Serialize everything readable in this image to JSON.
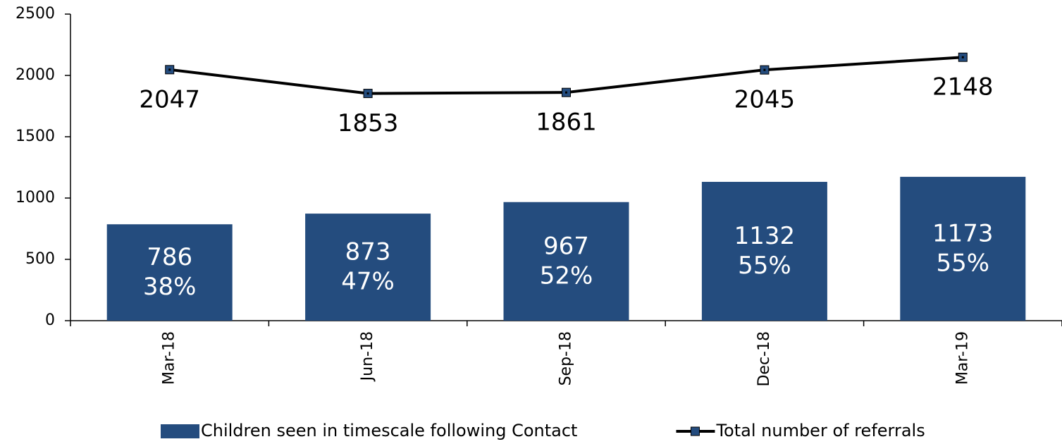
{
  "chart_data": {
    "type": "bar",
    "categories": [
      "Mar-18",
      "Jun-18",
      "Sep-18",
      "Dec-18",
      "Mar-19"
    ],
    "series": [
      {
        "name": "Children seen in timescale following Contact",
        "type": "bar",
        "color": "#244c7e",
        "values": [
          786,
          873,
          967,
          1132,
          1173
        ],
        "percent_labels": [
          "38%",
          "47%",
          "52%",
          "55%",
          "55%"
        ]
      },
      {
        "name": "Total number of referrals",
        "type": "line",
        "color": "#000000",
        "marker_color": "#244c7e",
        "values": [
          2047,
          1853,
          1861,
          2045,
          2148
        ]
      }
    ],
    "ylim": [
      0,
      2500
    ],
    "yticks": [
      0,
      500,
      1000,
      1500,
      2000,
      2500
    ],
    "grid": false,
    "legend": "bottom"
  }
}
